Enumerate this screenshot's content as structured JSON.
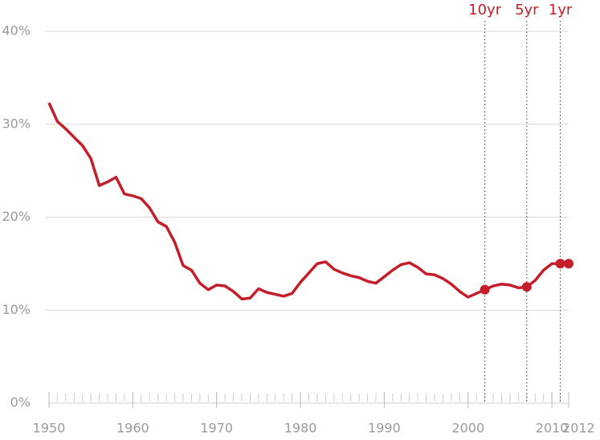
{
  "chart_data": {
    "type": "line",
    "x": [
      1950,
      1951,
      1952,
      1953,
      1954,
      1955,
      1956,
      1957,
      1958,
      1959,
      1960,
      1961,
      1962,
      1963,
      1964,
      1965,
      1966,
      1967,
      1968,
      1969,
      1970,
      1971,
      1972,
      1973,
      1974,
      1975,
      1976,
      1977,
      1978,
      1979,
      1980,
      1981,
      1982,
      1983,
      1984,
      1985,
      1986,
      1987,
      1988,
      1989,
      1990,
      1991,
      1992,
      1993,
      1994,
      1995,
      1996,
      1997,
      1998,
      1999,
      2000,
      2001,
      2002,
      2003,
      2004,
      2005,
      2006,
      2007,
      2008,
      2009,
      2010,
      2011,
      2012
    ],
    "series": [
      {
        "color": "#c41e2a",
        "values": [
          32.3,
          30.3,
          29.5,
          28.6,
          27.7,
          26.3,
          23.4,
          23.8,
          24.3,
          22.5,
          22.3,
          22.0,
          21.0,
          19.5,
          19.0,
          17.3,
          14.8,
          14.3,
          12.9,
          12.2,
          12.7,
          12.6,
          12.0,
          11.2,
          11.3,
          12.3,
          11.9,
          11.7,
          11.5,
          11.8,
          13.0,
          14.0,
          15.0,
          15.2,
          14.4,
          14.0,
          13.7,
          13.5,
          13.1,
          12.9,
          13.6,
          14.3,
          14.9,
          15.1,
          14.6,
          13.9,
          13.8,
          13.4,
          12.8,
          12.0,
          11.4,
          11.8,
          12.2,
          12.6,
          12.8,
          12.7,
          12.4,
          12.5,
          13.2,
          14.3,
          15.0,
          15.0,
          15.0
        ]
      }
    ],
    "highlight_x": [
      2002,
      2007,
      2011,
      2012
    ],
    "annotations": [
      {
        "x": 2002,
        "label": "10yr"
      },
      {
        "x": 2007,
        "label": "5yr"
      },
      {
        "x": 2011,
        "label": "1yr"
      }
    ],
    "xlim": [
      1950,
      2012
    ],
    "xticks": [
      1950,
      1960,
      1970,
      1980,
      1990,
      2000,
      2010,
      2012
    ],
    "ylim": [
      0,
      40
    ],
    "yticks": [
      {
        "value": 0,
        "label": "0%"
      },
      {
        "value": 10,
        "label": "10%"
      },
      {
        "value": 20,
        "label": "20%"
      },
      {
        "value": 30,
        "label": "30%"
      },
      {
        "value": 40,
        "label": "40%"
      }
    ],
    "grid": true
  }
}
